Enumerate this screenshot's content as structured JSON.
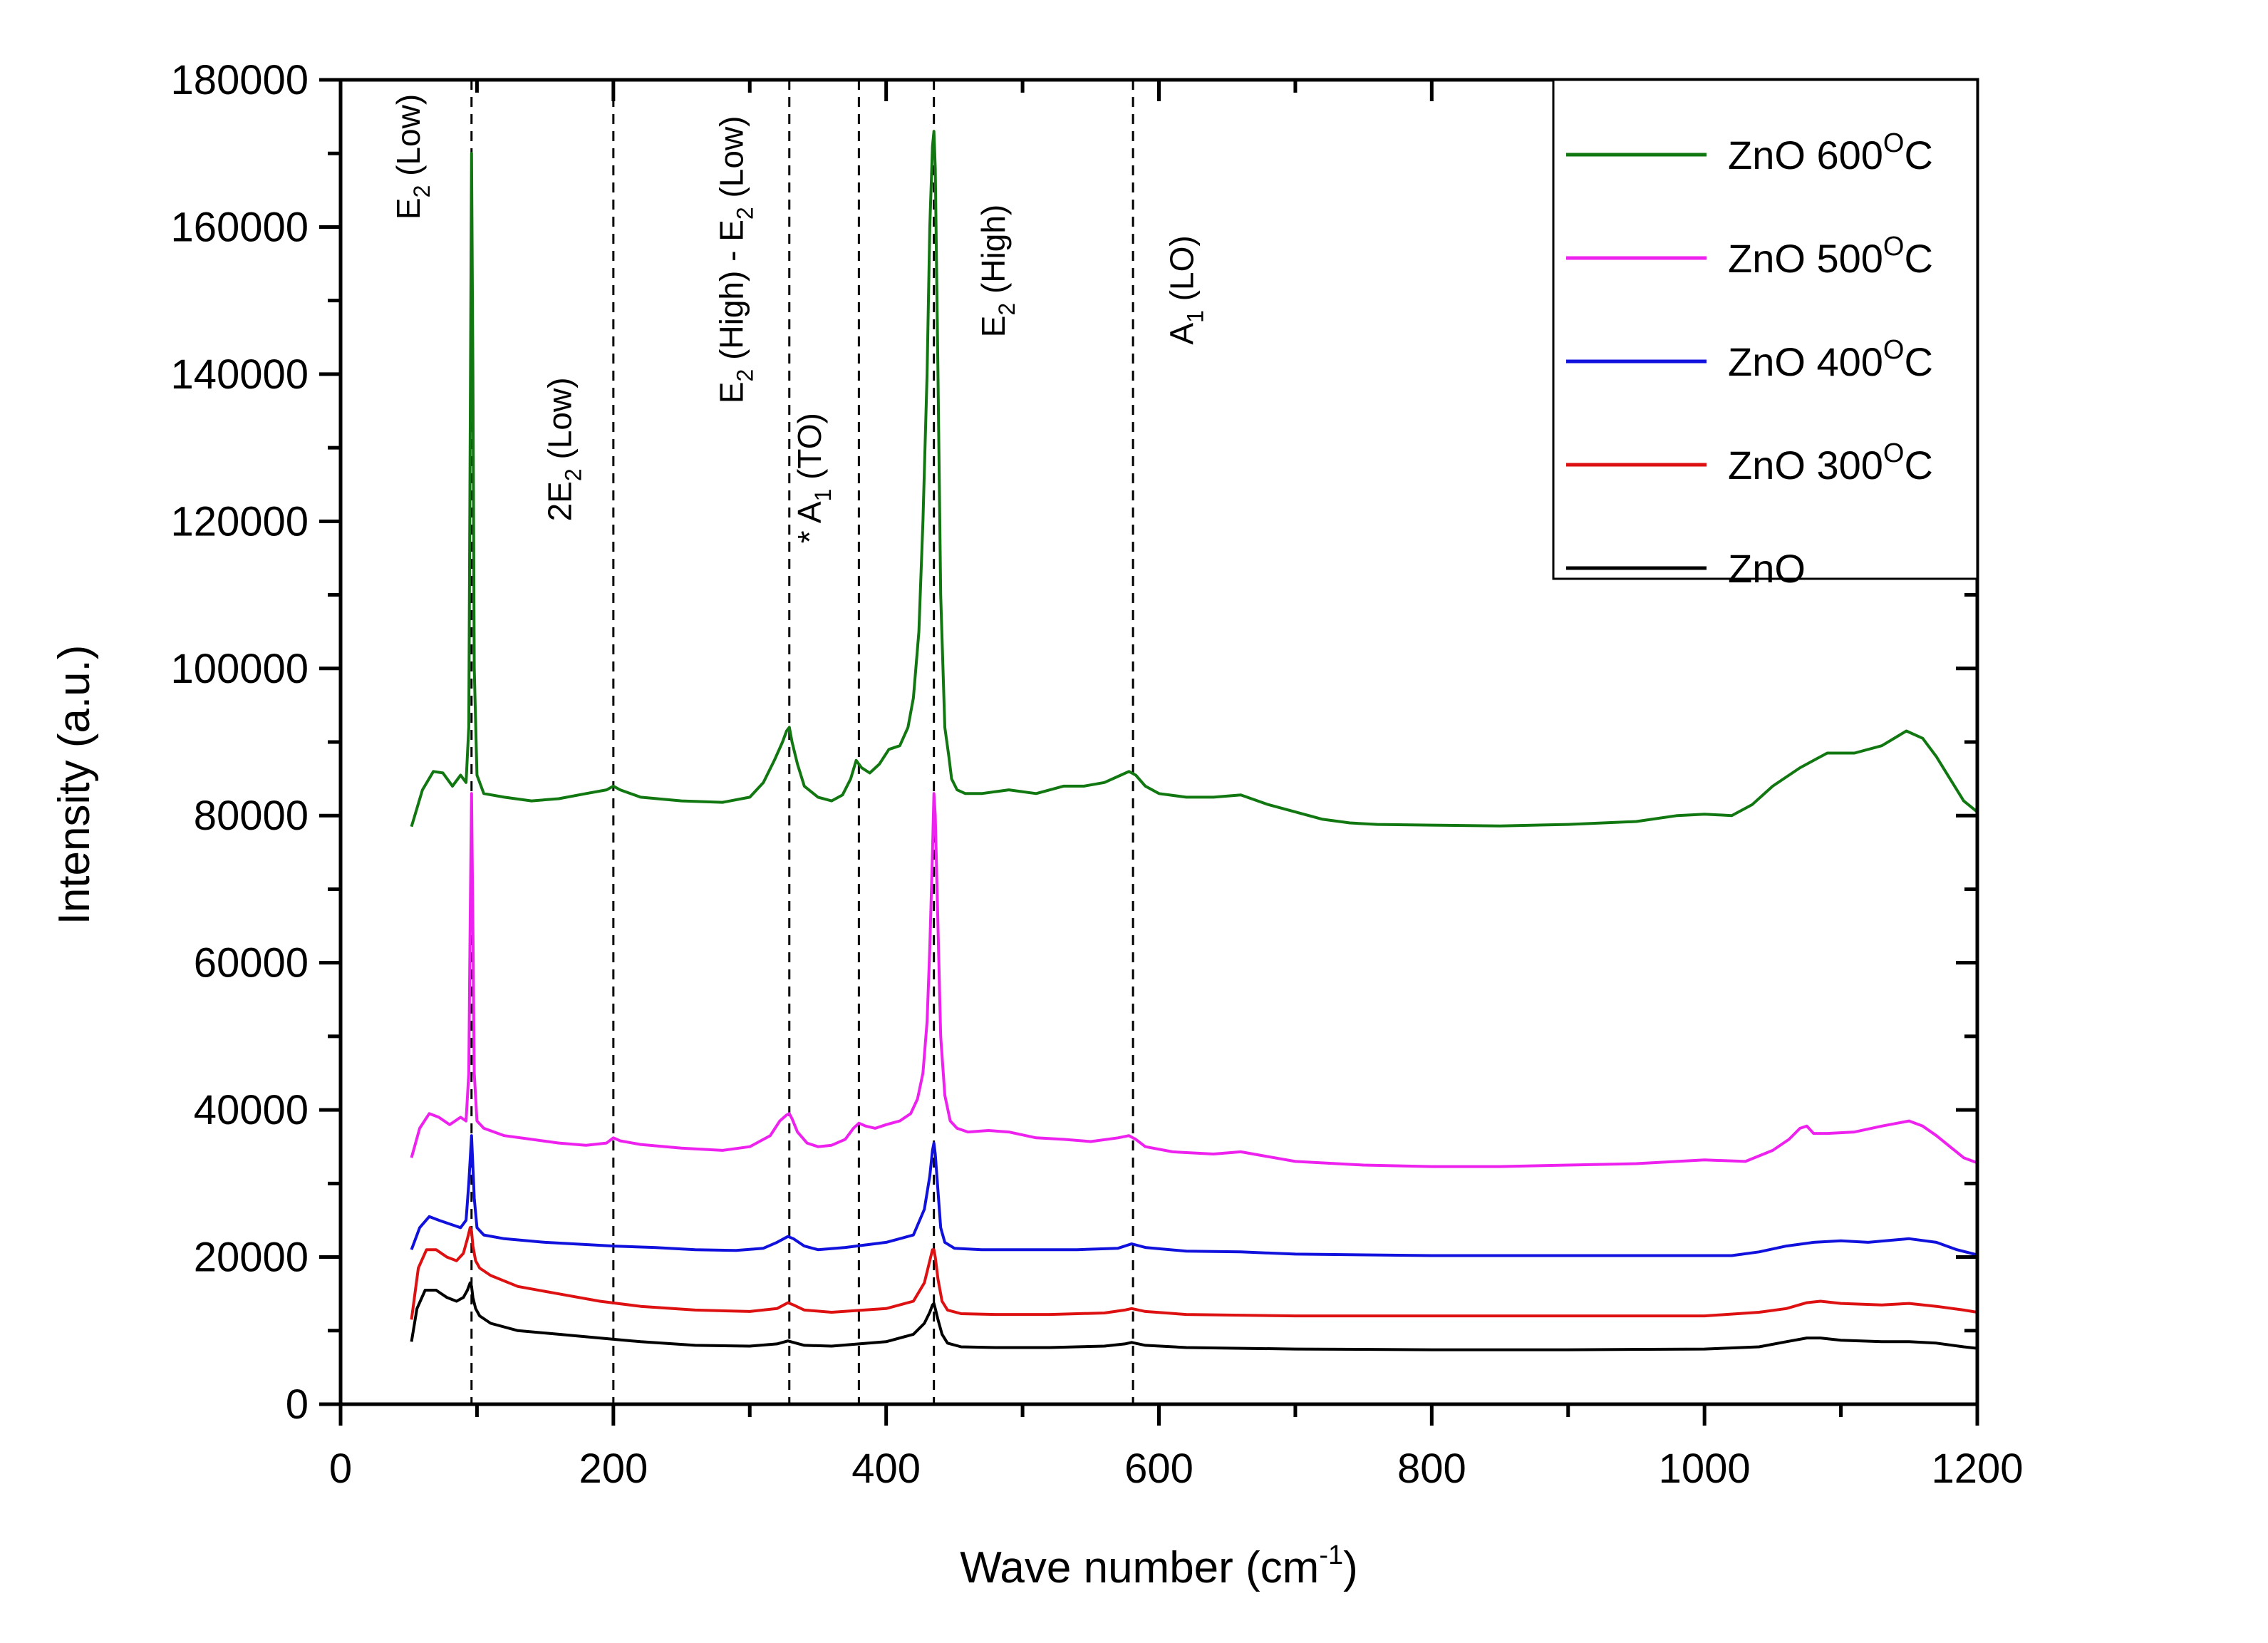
{
  "chart_data": {
    "type": "line",
    "xlabel": "Wave number (cm",
    "xlabel_sup": "-1",
    "xlabel_end": ")",
    "ylabel": "Intensity (a.u.)",
    "xlim": [
      0,
      1200
    ],
    "ylim": [
      0,
      180000
    ],
    "x_ticks": [
      0,
      200,
      400,
      600,
      800,
      1000,
      1200
    ],
    "y_ticks": [
      0,
      20000,
      40000,
      60000,
      80000,
      100000,
      120000,
      140000,
      160000,
      180000
    ],
    "grid": false,
    "legend_position": "top-right",
    "reference_lines": [
      96,
      200,
      329,
      380,
      435,
      581
    ],
    "annotations": [
      {
        "x": 58,
        "y": 161000,
        "base": "E",
        "sub": "2",
        "rest": " (Low)"
      },
      {
        "x": 169,
        "y": 120000,
        "base": "2E",
        "sub": "2",
        "rest": " (Low)"
      },
      {
        "x": 295,
        "y": 136000,
        "base": "E",
        "sub": "2",
        "rest": " (High) - E",
        "sub2": "2",
        "rest2": " (Low)"
      },
      {
        "x": 352,
        "y": 117000,
        "base": "* A",
        "sub": "1",
        "rest": " (TO)"
      },
      {
        "x": 487,
        "y": 145000,
        "base": "E",
        "sub": "2",
        "rest": " (High)"
      },
      {
        "x": 625,
        "y": 144000,
        "base": "A",
        "sub": "1",
        "rest": " (LO)"
      }
    ],
    "series": [
      {
        "name": "ZnO 600",
        "name_sup": "O",
        "name_end": "C",
        "color": "#117711",
        "x": [
          52,
          60,
          68,
          75,
          82,
          88,
          92,
          94,
          95,
          96,
          97,
          98,
          100,
          105,
          120,
          140,
          160,
          180,
          195,
          200,
          205,
          220,
          250,
          280,
          300,
          310,
          318,
          324,
          327,
          329,
          331,
          335,
          340,
          350,
          360,
          368,
          374,
          378,
          382,
          388,
          395,
          402,
          410,
          416,
          420,
          424,
          427,
          430,
          432,
          434,
          435,
          436,
          438,
          440,
          443,
          446,
          448,
          452,
          458,
          470,
          490,
          510,
          530,
          545,
          560,
          572,
          578,
          583,
          590,
          600,
          620,
          640,
          660,
          680,
          700,
          720,
          740,
          760,
          800,
          850,
          900,
          950,
          980,
          1000,
          1020,
          1035,
          1050,
          1070,
          1090,
          1110,
          1130,
          1148,
          1160,
          1170,
          1180,
          1190,
          1200
        ],
        "y": [
          78500,
          83500,
          86000,
          85800,
          84000,
          85500,
          84500,
          92000,
          130000,
          170000,
          140000,
          100000,
          85500,
          83000,
          82500,
          82000,
          82300,
          83000,
          83500,
          84000,
          83500,
          82500,
          82000,
          81800,
          82500,
          84500,
          87500,
          90000,
          91500,
          92000,
          90000,
          87000,
          84000,
          82500,
          82000,
          82800,
          85000,
          87500,
          86500,
          85800,
          87000,
          89000,
          89500,
          92000,
          96000,
          105000,
          120000,
          140000,
          160000,
          171000,
          173000,
          168000,
          140000,
          110000,
          92000,
          88000,
          85000,
          83500,
          83000,
          83000,
          83500,
          83000,
          84000,
          84000,
          84500,
          85500,
          86000,
          85500,
          84000,
          83000,
          82500,
          82500,
          82800,
          81500,
          80500,
          79500,
          79000,
          78800,
          78700,
          78600,
          78800,
          79200,
          80000,
          80200,
          80000,
          81500,
          84000,
          86500,
          88500,
          88500,
          89500,
          91500,
          90500,
          88000,
          85000,
          82000,
          80500
        ]
      },
      {
        "name": "ZnO 500",
        "name_sup": "O",
        "name_end": "C",
        "color": "#ee22ee",
        "x": [
          52,
          58,
          65,
          72,
          80,
          88,
          92,
          94,
          95,
          96,
          97,
          98,
          100,
          105,
          120,
          140,
          160,
          180,
          195,
          200,
          205,
          220,
          250,
          280,
          300,
          315,
          322,
          327,
          329,
          331,
          335,
          342,
          350,
          360,
          370,
          376,
          380,
          385,
          392,
          400,
          410,
          418,
          423,
          427,
          430,
          432,
          434,
          435,
          436,
          438,
          440,
          443,
          447,
          452,
          460,
          475,
          490,
          510,
          530,
          550,
          570,
          578,
          583,
          590,
          610,
          640,
          660,
          700,
          750,
          800,
          850,
          900,
          950,
          1000,
          1030,
          1050,
          1062,
          1070,
          1075,
          1080,
          1090,
          1110,
          1130,
          1150,
          1160,
          1170,
          1180,
          1190,
          1200
        ],
        "y": [
          33500,
          37500,
          39500,
          39000,
          38000,
          39000,
          38500,
          45000,
          65000,
          83000,
          65000,
          45000,
          38500,
          37500,
          36500,
          36000,
          35500,
          35200,
          35500,
          36200,
          35800,
          35300,
          34800,
          34500,
          35000,
          36500,
          38500,
          39300,
          39500,
          38800,
          37000,
          35500,
          35000,
          35200,
          36000,
          37500,
          38200,
          37800,
          37500,
          38000,
          38500,
          39500,
          41500,
          45000,
          52000,
          62000,
          75000,
          83000,
          80000,
          65000,
          50000,
          42000,
          38500,
          37500,
          37000,
          37200,
          37000,
          36200,
          36000,
          35700,
          36200,
          36500,
          36000,
          35000,
          34300,
          34000,
          34300,
          33000,
          32500,
          32300,
          32300,
          32500,
          32700,
          33200,
          33000,
          34500,
          36000,
          37500,
          37800,
          36800,
          36800,
          37000,
          37800,
          38500,
          37800,
          36500,
          35000,
          33500,
          32800
        ]
      },
      {
        "name": "ZnO 400",
        "name_sup": "O",
        "name_end": "C",
        "color": "#1111dd",
        "x": [
          52,
          58,
          65,
          72,
          80,
          88,
          92,
          94,
          96,
          98,
          100,
          105,
          120,
          150,
          180,
          200,
          230,
          260,
          290,
          310,
          320,
          328,
          332,
          340,
          350,
          370,
          400,
          420,
          428,
          432,
          434,
          435,
          436,
          438,
          440,
          443,
          450,
          470,
          500,
          540,
          570,
          580,
          590,
          620,
          660,
          700,
          800,
          900,
          1000,
          1020,
          1040,
          1060,
          1080,
          1100,
          1120,
          1150,
          1170,
          1185,
          1200
        ],
        "y": [
          21000,
          24000,
          25500,
          25000,
          24500,
          24000,
          25000,
          30000,
          36500,
          28000,
          24000,
          23000,
          22500,
          22000,
          21700,
          21500,
          21300,
          21000,
          20900,
          21200,
          22000,
          22800,
          22500,
          21500,
          21000,
          21300,
          22000,
          23000,
          26500,
          31000,
          34500,
          35500,
          34000,
          29000,
          24000,
          22000,
          21200,
          21000,
          21000,
          21000,
          21200,
          21800,
          21300,
          20800,
          20700,
          20400,
          20200,
          20200,
          20200,
          20200,
          20700,
          21500,
          22000,
          22200,
          22000,
          22500,
          22000,
          21000,
          20300
        ]
      },
      {
        "name": "ZnO 300",
        "name_sup": "O",
        "name_end": "C",
        "color": "#dd1111",
        "x": [
          52,
          57,
          63,
          70,
          78,
          85,
          90,
          93,
          95,
          96,
          97,
          99,
          102,
          110,
          130,
          160,
          190,
          220,
          260,
          300,
          320,
          328,
          332,
          340,
          360,
          400,
          420,
          428,
          432,
          434,
          435,
          436,
          438,
          441,
          445,
          455,
          480,
          520,
          560,
          575,
          580,
          590,
          620,
          700,
          800,
          900,
          1000,
          1040,
          1060,
          1075,
          1085,
          1100,
          1130,
          1150,
          1170,
          1190,
          1200
        ],
        "y": [
          11500,
          18500,
          21000,
          21000,
          20000,
          19500,
          20500,
          22500,
          24000,
          23500,
          21500,
          19500,
          18500,
          17500,
          16000,
          15000,
          14000,
          13300,
          12800,
          12600,
          13000,
          13800,
          13500,
          12800,
          12500,
          13000,
          14000,
          16500,
          19500,
          21000,
          21000,
          20000,
          17000,
          14000,
          12800,
          12300,
          12200,
          12200,
          12400,
          12800,
          13000,
          12600,
          12200,
          12000,
          12000,
          12000,
          12000,
          12500,
          13000,
          13800,
          14000,
          13700,
          13500,
          13700,
          13300,
          12800,
          12500
        ]
      },
      {
        "name": "ZnO",
        "color": "#000000",
        "x": [
          52,
          56,
          62,
          70,
          78,
          85,
          90,
          93,
          95,
          96,
          97,
          99,
          102,
          110,
          130,
          160,
          190,
          220,
          260,
          300,
          320,
          328,
          332,
          340,
          360,
          400,
          420,
          428,
          432,
          434,
          435,
          436,
          438,
          441,
          445,
          455,
          480,
          520,
          560,
          575,
          580,
          590,
          620,
          700,
          800,
          900,
          1000,
          1040,
          1060,
          1075,
          1085,
          1100,
          1130,
          1150,
          1170,
          1190,
          1200
        ],
        "y": [
          8500,
          13000,
          15500,
          15500,
          14500,
          14000,
          14500,
          15500,
          16500,
          16000,
          14500,
          13000,
          12000,
          11000,
          10000,
          9500,
          9000,
          8500,
          8000,
          7900,
          8200,
          8600,
          8400,
          8000,
          7900,
          8500,
          9500,
          11000,
          12500,
          13500,
          13700,
          13000,
          11500,
          9500,
          8300,
          7800,
          7700,
          7700,
          7900,
          8200,
          8400,
          8000,
          7700,
          7500,
          7400,
          7400,
          7500,
          7800,
          8500,
          9000,
          9000,
          8700,
          8500,
          8500,
          8300,
          7800,
          7600
        ]
      }
    ]
  }
}
